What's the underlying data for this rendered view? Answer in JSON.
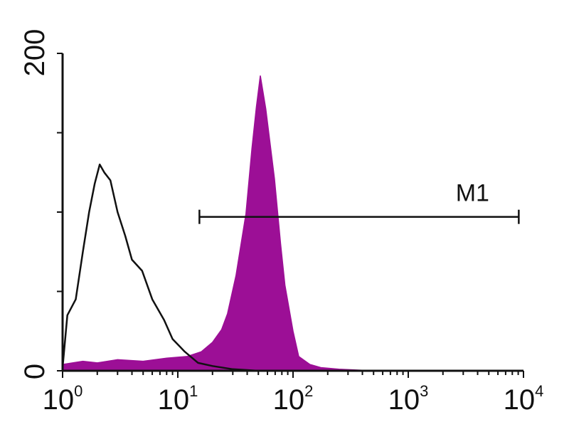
{
  "chart_data": {
    "type": "area",
    "title": "",
    "xlabel": "",
    "ylabel": "",
    "x_scale": "log",
    "xlim": [
      1,
      10000
    ],
    "ylim": [
      0,
      200
    ],
    "grid": false,
    "x_ticks": [
      {
        "base": "10",
        "exp": "0",
        "value": 1
      },
      {
        "base": "10",
        "exp": "1",
        "value": 10
      },
      {
        "base": "10",
        "exp": "2",
        "value": 100
      },
      {
        "base": "10",
        "exp": "3",
        "value": 1000
      },
      {
        "base": "10",
        "exp": "4",
        "value": 10000
      }
    ],
    "y_ticks": [
      {
        "label": "0",
        "value": 0
      },
      {
        "label": "200",
        "value": 200
      }
    ],
    "y_minor_ticks": [
      50,
      100,
      150
    ],
    "series": [
      {
        "style": "outline",
        "color": "#111111",
        "x": [
          1.0,
          1.1,
          1.3,
          1.5,
          1.7,
          1.9,
          2.1,
          2.3,
          2.6,
          3.0,
          3.5,
          4.0,
          4.9,
          6.0,
          7.6,
          9.0,
          11.5,
          15,
          20,
          30,
          50,
          100
        ],
        "y": [
          2,
          35,
          45,
          75,
          100,
          118,
          130,
          125,
          120,
          100,
          85,
          70,
          63,
          45,
          32,
          20,
          12,
          5,
          3,
          1,
          0,
          0
        ]
      },
      {
        "style": "filled",
        "color": "#9c0f96",
        "x": [
          1.0,
          1.5,
          2,
          3,
          5,
          8,
          12,
          16,
          20,
          24,
          27,
          32,
          39,
          44,
          48,
          52,
          58,
          69,
          78,
          85,
          100,
          112,
          140,
          174,
          250,
          500,
          1000,
          10000
        ],
        "y": [
          4,
          6,
          5,
          7,
          6,
          8,
          9,
          12,
          18,
          26,
          36,
          60,
          99,
          140,
          166,
          186,
          165,
          121,
          80,
          54,
          25,
          9,
          4,
          2,
          1,
          0,
          0,
          0
        ]
      }
    ],
    "markers": [
      {
        "label": "M1",
        "x_start": 15.4,
        "x_end": 9100,
        "y": 97
      }
    ]
  }
}
